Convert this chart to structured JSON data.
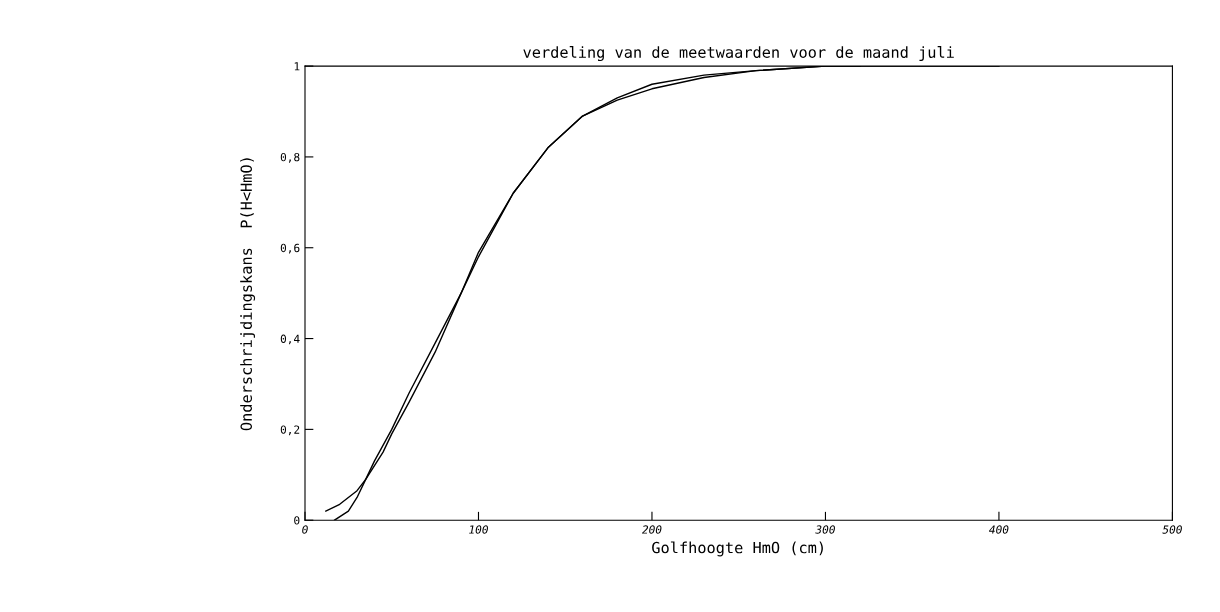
{
  "chart_data": {
    "type": "line",
    "title": "verdeling van de meetwaarden voor de maand juli",
    "xlabel": "Golfhoogte HmO (cm)",
    "ylabel": "Onderschrijdingskans  P(H<HmO)",
    "series": [
      {
        "color": "#000000",
        "x": [
          12,
          20,
          30,
          35,
          45,
          50,
          60,
          75,
          90,
          100,
          120,
          140,
          160,
          180,
          200,
          230,
          260,
          300,
          350,
          400
        ],
        "values": [
          0.02,
          0.035,
          0.065,
          0.09,
          0.15,
          0.19,
          0.26,
          0.37,
          0.5,
          0.58,
          0.72,
          0.82,
          0.89,
          0.93,
          0.96,
          0.98,
          0.99,
          1.0,
          1.0,
          1.0
        ]
      },
      {
        "color": "#000000",
        "x": [
          17,
          25,
          30,
          35,
          40,
          50,
          60,
          75,
          90,
          100,
          120,
          140,
          160,
          180,
          200,
          230,
          260,
          300,
          320
        ],
        "values": [
          0,
          0.02,
          0.05,
          0.09,
          0.13,
          0.2,
          0.28,
          0.39,
          0.5,
          0.59,
          0.72,
          0.82,
          0.89,
          0.925,
          0.95,
          0.975,
          0.99,
          1.0,
          1.0
        ]
      }
    ],
    "xlim": [
      0,
      500
    ],
    "ylim": [
      0,
      1
    ],
    "xticks": [
      0,
      100,
      200,
      300,
      400,
      500
    ],
    "yticks": [
      0,
      {
        "value": 0.2,
        "label": "0,2"
      },
      {
        "value": 0.4,
        "label": "0,4"
      },
      {
        "value": 0.6,
        "label": "0,6"
      },
      {
        "value": 0.8,
        "label": "0,8"
      },
      1
    ],
    "grid": false,
    "legend": false
  }
}
